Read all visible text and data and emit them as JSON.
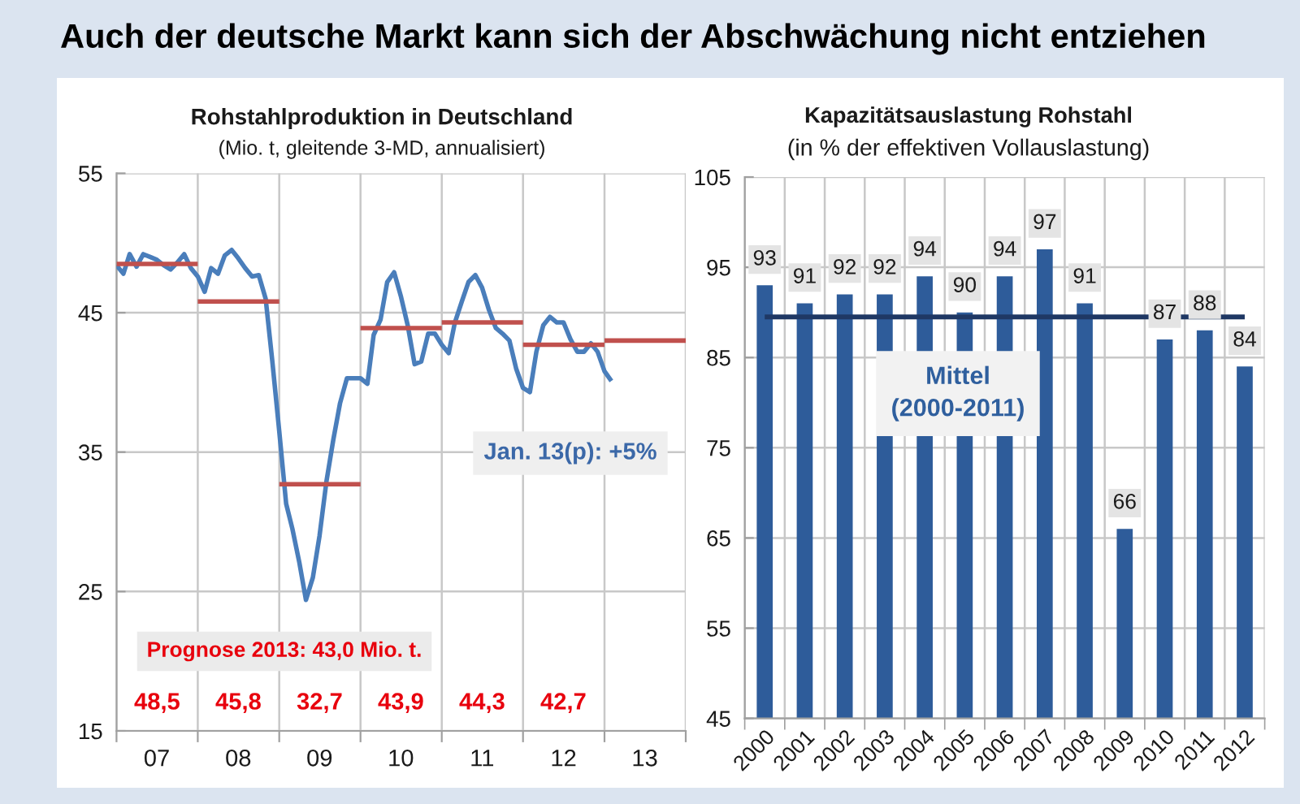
{
  "chart_data": [
    {
      "type": "line",
      "title": "Rohstahlproduktion in Deutschland",
      "subtitle": "(Mio. t, gleitende 3-MD, annualisiert)",
      "xlim": [
        "2007",
        "2014"
      ],
      "xticks": [
        {
          "value": "2007",
          "label": null
        },
        {
          "value": "2007-07",
          "label": "07"
        },
        {
          "value": "2008",
          "label": null
        },
        {
          "value": "2008-07",
          "label": "08"
        },
        {
          "value": "2009",
          "label": null
        },
        {
          "value": "2009-07",
          "label": "09"
        },
        {
          "value": "2010",
          "label": null
        },
        {
          "value": "2010-07",
          "label": "10"
        },
        {
          "value": "2011",
          "label": null
        },
        {
          "value": "2011-07",
          "label": "11"
        },
        {
          "value": "2012",
          "label": null
        },
        {
          "value": "2012-07",
          "label": "12"
        },
        {
          "value": "2013",
          "label": null
        },
        {
          "value": "2013-07",
          "label": "13"
        },
        {
          "value": "2014",
          "label": null
        }
      ],
      "ylim": [
        15,
        55
      ],
      "yticks": [
        15,
        25,
        35,
        45,
        55
      ],
      "grid": true,
      "series": [
        {
          "type": "line",
          "color": "#4a7ebb",
          "x": [
            "2007-01",
            "2007-02",
            "2007-03",
            "2007-04",
            "2007-05",
            "2007-06",
            "2007-07",
            "2007-08",
            "2007-09",
            "2007-10",
            "2007-11",
            "2007-12",
            "2008-01",
            "2008-02",
            "2008-03",
            "2008-04",
            "2008-05",
            "2008-06",
            "2008-07",
            "2008-08",
            "2008-09",
            "2008-10",
            "2008-11",
            "2008-12",
            "2009-01",
            "2009-02",
            "2009-03",
            "2009-04",
            "2009-05",
            "2009-06",
            "2009-07",
            "2009-08",
            "2009-09",
            "2009-10",
            "2009-11",
            "2009-12",
            "2010-01",
            "2010-02",
            "2010-03",
            "2010-04",
            "2010-05",
            "2010-06",
            "2010-07",
            "2010-08",
            "2010-09",
            "2010-10",
            "2010-11",
            "2010-12",
            "2011-01",
            "2011-02",
            "2011-03",
            "2011-04",
            "2011-05",
            "2011-06",
            "2011-07",
            "2011-08",
            "2011-09",
            "2011-10",
            "2011-11",
            "2011-12",
            "2012-01",
            "2012-02",
            "2012-03",
            "2012-04",
            "2012-05",
            "2012-06",
            "2012-07",
            "2012-08",
            "2012-09",
            "2012-10",
            "2012-11",
            "2012-12",
            "2013-01",
            "2013-02"
          ],
          "values": [
            48.4,
            47.8,
            49.2,
            48.3,
            49.2,
            49.0,
            48.8,
            48.4,
            48.1,
            48.6,
            49.2,
            48.2,
            47.6,
            46.5,
            48.2,
            47.8,
            49.1,
            49.5,
            48.9,
            48.2,
            47.6,
            47.7,
            46.0,
            41.5,
            36.5,
            31.3,
            29.5,
            27.1,
            24.4,
            26.0,
            29.0,
            32.9,
            35.9,
            38.5,
            40.3,
            40.3,
            40.3,
            39.9,
            43.4,
            44.5,
            47.2,
            47.9,
            46.2,
            44.1,
            41.3,
            41.5,
            43.5,
            43.5,
            42.7,
            42.1,
            44.3,
            45.8,
            47.2,
            47.7,
            46.8,
            45.2,
            43.9,
            43.5,
            43.0,
            41.0,
            39.6,
            39.3,
            42.2,
            44.1,
            44.7,
            44.3,
            44.3,
            43.1,
            42.2,
            42.2,
            42.8,
            42.2,
            40.8,
            40.1
          ]
        },
        {
          "type": "line",
          "color": "#c0504d",
          "x": [
            "2007",
            "2008"
          ],
          "values": [
            48.5,
            48.5
          ]
        },
        {
          "type": "line",
          "color": "#c0504d",
          "x": [
            "2008",
            "2009"
          ],
          "values": [
            45.8,
            45.8
          ]
        },
        {
          "type": "line",
          "color": "#c0504d",
          "x": [
            "2009",
            "2010"
          ],
          "values": [
            32.7,
            32.7
          ]
        },
        {
          "type": "line",
          "color": "#c0504d",
          "x": [
            "2010",
            "2011"
          ],
          "values": [
            43.9,
            43.9
          ]
        },
        {
          "type": "line",
          "color": "#c0504d",
          "x": [
            "2011",
            "2012"
          ],
          "values": [
            44.3,
            44.3
          ]
        },
        {
          "type": "line",
          "color": "#c0504d",
          "x": [
            "2012",
            "2013"
          ],
          "values": [
            42.7,
            42.7
          ]
        },
        {
          "type": "line",
          "color": "#c0504d",
          "x": [
            "2013",
            "2014"
          ],
          "values": [
            43.0,
            43.0
          ]
        }
      ],
      "annotations": [
        "Auch der deutsche Markt kann sich der Abschwächung nicht entziehen",
        "Jan. 13(p): +5%",
        "Prognose 2013: 43,0 Mio. t.",
        "48,5",
        "45,8",
        "32,7",
        "43,9",
        "44,3",
        "42,7"
      ]
    },
    {
      "type": "bar",
      "title": "Kapazitätsauslastung Rohstahl",
      "subtitle": "(in % der effektiven Vollauslastung)",
      "categories": [
        "2000",
        "2001",
        "2002",
        "2003",
        "2004",
        "2005",
        "2006",
        "2007",
        "2008",
        "2009",
        "2010",
        "2011",
        "2012"
      ],
      "values": [
        93,
        91,
        92,
        92,
        94,
        90,
        94,
        97,
        91,
        66,
        87,
        88,
        84
      ],
      "color": "#2e5c9a",
      "ylim": [
        45,
        105
      ],
      "yticks": [
        45,
        55,
        65,
        75,
        85,
        95,
        105
      ],
      "grid": true,
      "data_labels": true,
      "ref_lines": [
        {
          "axis": "y",
          "value": 89.5,
          "label": "Mittel\n(2000-2011)",
          "color": "#1f3864"
        }
      ]
    }
  ]
}
